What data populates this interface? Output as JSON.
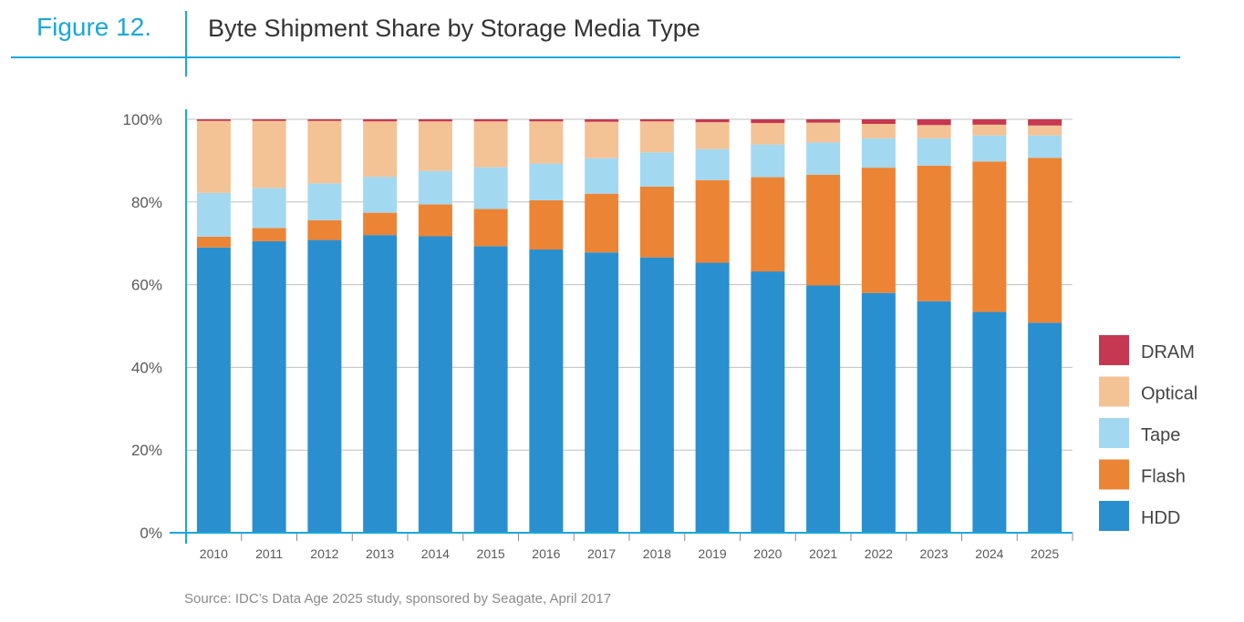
{
  "figure": {
    "label": "Figure 12.",
    "title": "Byte Shipment Share by Storage Media Type",
    "source": "Source: IDC’s Data Age 2025 study, sponsored by Seagate, April 2017"
  },
  "chart_data": {
    "type": "bar",
    "stacked": true,
    "title": "Byte Shipment Share by Storage Media Type",
    "xlabel": "",
    "ylabel": "",
    "ylim": [
      0,
      100
    ],
    "yticks": [
      "0%",
      "20%",
      "40%",
      "60%",
      "80%",
      "100%"
    ],
    "grid": true,
    "legend_position": "right",
    "categories": [
      "2010",
      "2011",
      "2012",
      "2013",
      "2014",
      "2015",
      "2016",
      "2017",
      "2018",
      "2019",
      "2020",
      "2021",
      "2022",
      "2023",
      "2024",
      "2025"
    ],
    "series": [
      {
        "name": "HDD",
        "color": "#2a8fcf",
        "values": [
          69.0,
          70.5,
          70.8,
          72.0,
          71.7,
          69.3,
          68.5,
          67.8,
          66.6,
          65.3,
          63.2,
          59.8,
          58.0,
          56.0,
          53.4,
          50.8
        ]
      },
      {
        "name": "Flash",
        "color": "#ec8435",
        "values": [
          2.6,
          3.2,
          4.8,
          5.4,
          7.7,
          9.0,
          11.9,
          14.2,
          17.1,
          20.0,
          22.8,
          26.8,
          30.3,
          32.8,
          36.4,
          39.9
        ]
      },
      {
        "name": "Tape",
        "color": "#a3d8f1",
        "values": [
          10.6,
          9.7,
          8.9,
          8.7,
          8.1,
          10.1,
          8.9,
          8.6,
          8.3,
          7.5,
          7.9,
          7.8,
          7.1,
          6.6,
          6.3,
          5.4
        ]
      },
      {
        "name": "Optical",
        "color": "#f3c295",
        "values": [
          17.4,
          16.2,
          15.1,
          13.4,
          12.0,
          11.1,
          10.2,
          8.8,
          7.5,
          6.5,
          5.2,
          4.8,
          3.5,
          3.2,
          2.6,
          2.4
        ]
      },
      {
        "name": "DRAM",
        "color": "#c63751",
        "values": [
          0.4,
          0.4,
          0.4,
          0.5,
          0.5,
          0.5,
          0.5,
          0.6,
          0.5,
          0.7,
          0.9,
          0.8,
          1.1,
          1.4,
          1.3,
          1.5
        ]
      }
    ],
    "legend_order": [
      "DRAM",
      "Optical",
      "Tape",
      "Flash",
      "HDD"
    ]
  }
}
